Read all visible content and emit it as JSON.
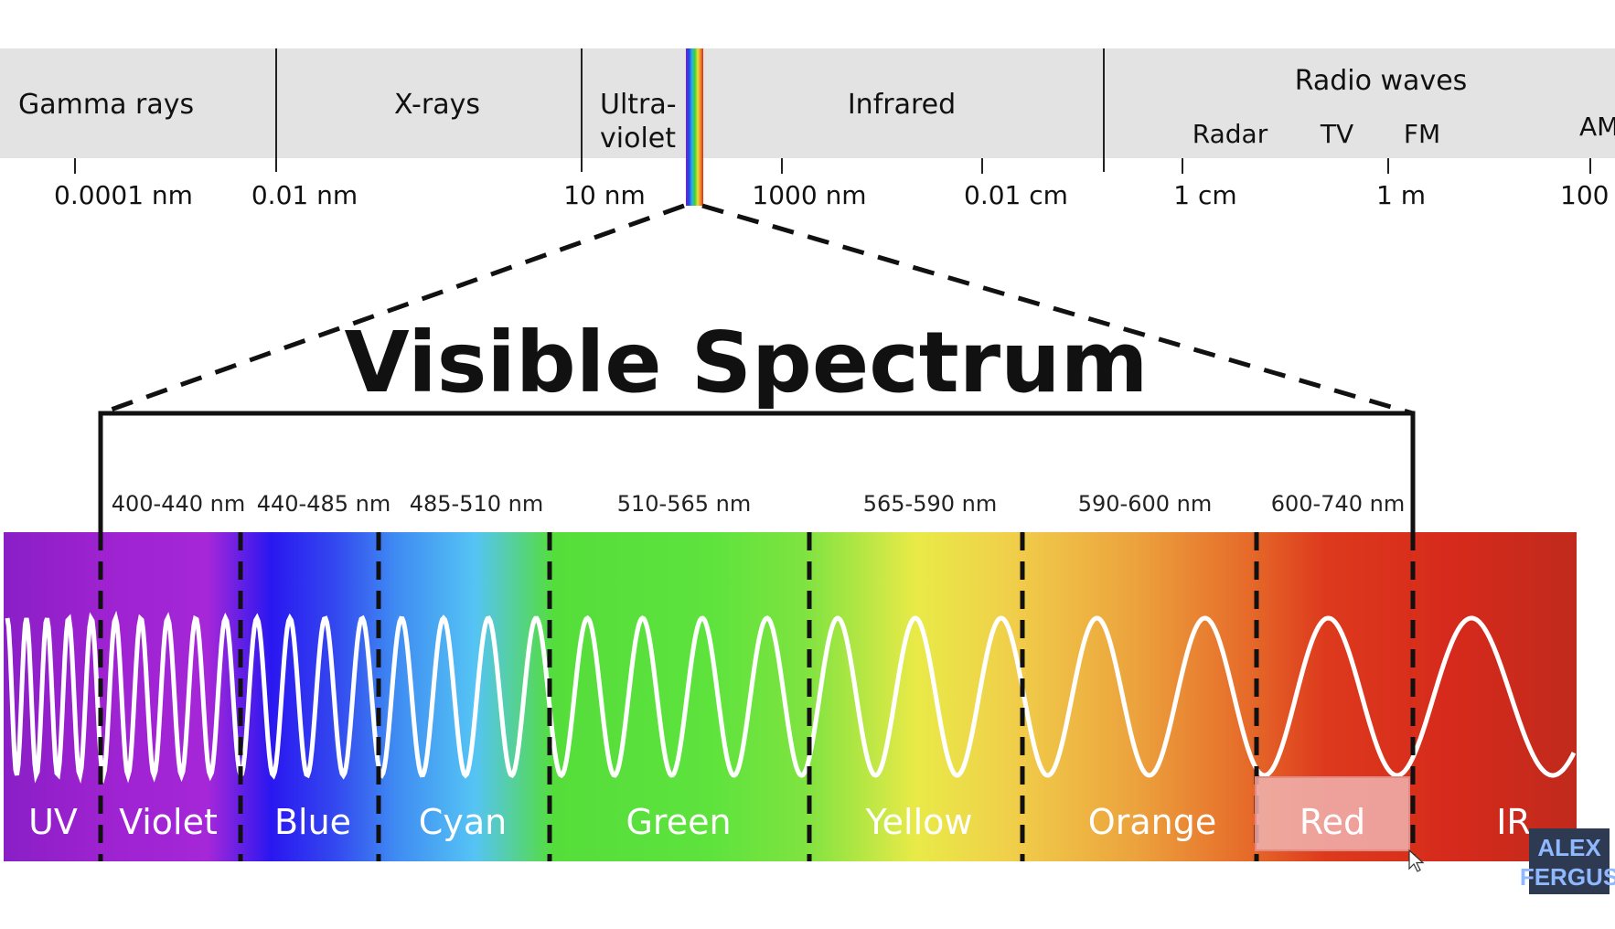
{
  "spectrum": {
    "bands": [
      {
        "label": "Gamma rays"
      },
      {
        "label": "X-rays"
      },
      {
        "label_line1": "Ultra-",
        "label_line2": "violet"
      },
      {
        "label": "Infrared"
      },
      {
        "label": "Radio waves"
      }
    ],
    "radio_sub": [
      "Radar",
      "TV",
      "FM",
      "AM"
    ],
    "ticks": [
      "0.0001 nm",
      "0.01 nm",
      "10 nm",
      "1000 nm",
      "0.01 cm",
      "1 cm",
      "1 m",
      "100"
    ]
  },
  "title": "Visible Spectrum",
  "visible": {
    "ranges": [
      "400-440 nm",
      "440-485 nm",
      "485-510 nm",
      "510-565 nm",
      "565-590 nm",
      "590-600  nm",
      "600-740 nm"
    ],
    "colors": [
      "UV",
      "Violet",
      "Blue",
      "Cyan",
      "Green",
      "Yellow",
      "Orange",
      "Red",
      "IR"
    ],
    "highlighted": "Red"
  },
  "logo": {
    "line1": "ALEX",
    "line2": "FERGUS"
  }
}
